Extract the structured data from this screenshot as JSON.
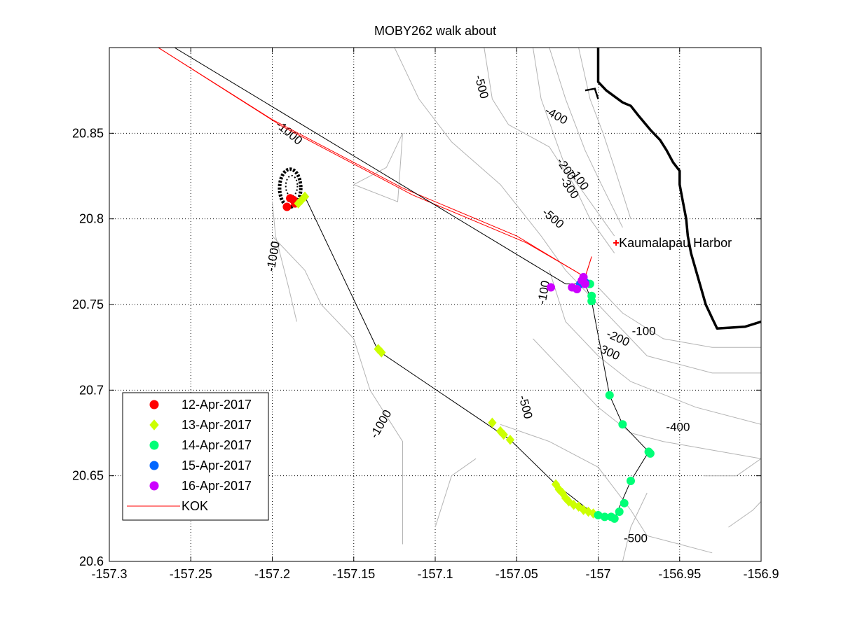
{
  "chart_data": {
    "type": "scatter",
    "title": "MOBY262 walk about",
    "xlabel": "",
    "ylabel": "",
    "xlim": [
      -157.3,
      -156.9
    ],
    "ylim": [
      20.6,
      20.9
    ],
    "xticks": [
      -157.3,
      -157.25,
      -157.2,
      -157.15,
      -157.1,
      -157.05,
      -157.0,
      -156.95,
      -156.9
    ],
    "xtick_labels": [
      "-157.3",
      "-157.25",
      "-157.2",
      "-157.15",
      "-157.1",
      "-157.05",
      "-157",
      "-156.95",
      "-156.9"
    ],
    "yticks": [
      20.6,
      20.65,
      20.7,
      20.75,
      20.8,
      20.85
    ],
    "ytick_labels": [
      "20.6",
      "20.65",
      "20.7",
      "20.75",
      "20.8",
      "20.85"
    ],
    "grid": true,
    "legend_position": "lower-left",
    "colors": {
      "day1": "#ff0000",
      "day2": "#ccff00",
      "day3": "#00ff77",
      "day4": "#0066ff",
      "day5": "#cc00ff",
      "kok": "#ff0000",
      "track": "#000000",
      "contour": "#b4b4b4",
      "coast": "#000000"
    },
    "series": [
      {
        "name": "12-Apr-2017",
        "marker": "circle",
        "color": "#ff0000",
        "points": [
          [
            -157.191,
            20.807
          ],
          [
            -157.189,
            20.812
          ],
          [
            -157.187,
            20.811
          ],
          [
            -157.186,
            20.809
          ]
        ]
      },
      {
        "name": "13-Apr-2017",
        "marker": "diamond",
        "color": "#ccff00",
        "points": [
          [
            -157.184,
            20.809
          ],
          [
            -157.182,
            20.811
          ],
          [
            -157.18,
            20.813
          ],
          [
            -157.135,
            20.724
          ],
          [
            -157.133,
            20.722
          ],
          [
            -157.065,
            20.681
          ],
          [
            -157.06,
            20.676
          ],
          [
            -157.058,
            20.674
          ],
          [
            -157.054,
            20.671
          ],
          [
            -157.026,
            20.645
          ],
          [
            -157.024,
            20.642
          ],
          [
            -157.022,
            20.64
          ],
          [
            -157.02,
            20.637
          ],
          [
            -157.018,
            20.635
          ],
          [
            -157.015,
            20.633
          ],
          [
            -157.012,
            20.632
          ],
          [
            -157.009,
            20.63
          ],
          [
            -157.006,
            20.629
          ],
          [
            -157.003,
            20.628
          ]
        ]
      },
      {
        "name": "14-Apr-2017",
        "marker": "circle",
        "color": "#00ff77",
        "points": [
          [
            -157.005,
            20.762
          ],
          [
            -157.004,
            20.755
          ],
          [
            -157.004,
            20.752
          ],
          [
            -156.993,
            20.697
          ],
          [
            -156.985,
            20.68
          ],
          [
            -156.969,
            20.664
          ],
          [
            -156.968,
            20.663
          ],
          [
            -156.98,
            20.647
          ],
          [
            -156.984,
            20.634
          ],
          [
            -156.987,
            20.629
          ],
          [
            -156.99,
            20.625
          ],
          [
            -156.992,
            20.626
          ],
          [
            -156.996,
            20.626
          ],
          [
            -157.0,
            20.627
          ]
        ]
      },
      {
        "name": "15-Apr-2017",
        "marker": "circle",
        "color": "#0066ff",
        "points": [
          [
            -157.011,
            20.762
          ],
          [
            -157.008,
            20.763
          ]
        ]
      },
      {
        "name": "16-Apr-2017",
        "marker": "circle",
        "color": "#cc00ff",
        "points": [
          [
            -157.029,
            20.76
          ],
          [
            -157.016,
            20.76
          ],
          [
            -157.013,
            20.759
          ],
          [
            -157.01,
            20.764
          ],
          [
            -157.009,
            20.766
          ],
          [
            -157.008,
            20.762
          ]
        ]
      },
      {
        "name": "KOK",
        "marker": "line",
        "color": "#ff0000",
        "points": [
          [
            -157.27,
            20.9
          ],
          [
            -157.2,
            20.858
          ],
          [
            -157.12,
            20.818
          ],
          [
            -157.05,
            20.79
          ],
          [
            -157.015,
            20.77
          ],
          [
            -157.008,
            20.766
          ],
          [
            -157.004,
            20.778
          ]
        ]
      }
    ],
    "track": [
      [
        -157.26,
        20.9
      ],
      [
        -157.02,
        20.762
      ],
      [
        -157.008,
        20.762
      ],
      [
        -157.004,
        20.752
      ],
      [
        -156.993,
        20.697
      ],
      [
        -156.985,
        20.68
      ],
      [
        -156.969,
        20.664
      ],
      [
        -156.98,
        20.647
      ],
      [
        -156.99,
        20.625
      ],
      [
        -157.003,
        20.628
      ],
      [
        -157.026,
        20.645
      ],
      [
        -157.054,
        20.671
      ],
      [
        -157.135,
        20.723
      ],
      [
        -157.18,
        20.813
      ]
    ],
    "contour_labels": [
      {
        "text": "-500",
        "x": -157.072,
        "y": 20.877,
        "angle": 75
      },
      {
        "text": "-400",
        "x": -157.026,
        "y": 20.86,
        "angle": 30
      },
      {
        "text": "-1000",
        "x": -157.19,
        "y": 20.85,
        "angle": 40
      },
      {
        "text": "-200",
        "x": -157.02,
        "y": 20.829,
        "angle": 55
      },
      {
        "text": "-100",
        "x": -157.012,
        "y": 20.823,
        "angle": 55
      },
      {
        "text": "-300",
        "x": -157.018,
        "y": 20.818,
        "angle": 55
      },
      {
        "text": "-500",
        "x": -157.028,
        "y": 20.8,
        "angle": 40
      },
      {
        "text": "-1000",
        "x": -157.199,
        "y": 20.778,
        "angle": -80
      },
      {
        "text": "-100",
        "x": -157.033,
        "y": 20.757,
        "angle": -80
      },
      {
        "text": "-100",
        "x": -156.972,
        "y": 20.734,
        "angle": 0
      },
      {
        "text": "-200",
        "x": -156.988,
        "y": 20.73,
        "angle": 25
      },
      {
        "text": "-300",
        "x": -156.994,
        "y": 20.722,
        "angle": 25
      },
      {
        "text": "-500",
        "x": -157.045,
        "y": 20.69,
        "angle": 75
      },
      {
        "text": "-1000",
        "x": -157.133,
        "y": 20.68,
        "angle": -60
      },
      {
        "text": "-400",
        "x": -156.951,
        "y": 20.678,
        "angle": 0
      },
      {
        "text": "-500",
        "x": -156.977,
        "y": 20.613,
        "angle": 0
      }
    ],
    "annotations": [
      {
        "text": "Kaumalapau Harbor",
        "x": -156.989,
        "y": 20.786
      }
    ],
    "contours": [
      [
        [
          -157.07,
          20.9
        ],
        [
          -157.065,
          20.87
        ],
        [
          -157.055,
          20.855
        ],
        [
          -157.03,
          20.842
        ],
        [
          -157.015,
          20.82
        ],
        [
          -157.005,
          20.8
        ],
        [
          -156.99,
          20.78
        ]
      ],
      [
        [
          -157.04,
          20.9
        ],
        [
          -157.035,
          20.87
        ],
        [
          -157.02,
          20.83
        ],
        [
          -157.005,
          20.81
        ],
        [
          -156.99,
          20.79
        ]
      ],
      [
        [
          -157.03,
          20.9
        ],
        [
          -157.02,
          20.87
        ],
        [
          -157.008,
          20.84
        ],
        [
          -156.998,
          20.82
        ],
        [
          -156.985,
          20.795
        ]
      ],
      [
        [
          -157.012,
          20.9
        ],
        [
          -157.005,
          20.87
        ],
        [
          -156.997,
          20.85
        ],
        [
          -156.99,
          20.83
        ],
        [
          -156.98,
          20.8
        ]
      ],
      [
        [
          -157.125,
          20.9
        ],
        [
          -157.11,
          20.87
        ],
        [
          -157.09,
          20.845
        ],
        [
          -157.06,
          20.82
        ],
        [
          -157.035,
          20.79
        ],
        [
          -157.02,
          20.77
        ],
        [
          -157.0,
          20.75
        ]
      ],
      [
        [
          -157.15,
          20.82
        ],
        [
          -157.13,
          20.83
        ],
        [
          -157.12,
          20.85
        ],
        [
          -157.123,
          20.81
        ],
        [
          -157.15,
          20.82
        ]
      ],
      [
        [
          -157.2,
          20.79
        ],
        [
          -157.18,
          20.77
        ],
        [
          -157.17,
          20.75
        ],
        [
          -157.15,
          20.73
        ],
        [
          -157.14,
          20.7
        ],
        [
          -157.12,
          20.67
        ],
        [
          -157.12,
          20.61
        ]
      ],
      [
        [
          -157.2,
          20.81
        ],
        [
          -157.198,
          20.79
        ],
        [
          -157.19,
          20.76
        ],
        [
          -157.185,
          20.74
        ]
      ],
      [
        [
          -157.1,
          20.62
        ],
        [
          -157.09,
          20.65
        ],
        [
          -157.075,
          20.66
        ]
      ],
      [
        [
          -157.03,
          20.77
        ],
        [
          -157.02,
          20.74
        ],
        [
          -157.0,
          20.72
        ],
        [
          -156.98,
          20.705
        ],
        [
          -156.94,
          20.69
        ],
        [
          -156.9,
          20.68
        ]
      ],
      [
        [
          -157.01,
          20.76
        ],
        [
          -156.99,
          20.74
        ],
        [
          -156.97,
          20.72
        ],
        [
          -156.93,
          20.71
        ],
        [
          -156.9,
          20.71
        ]
      ],
      [
        [
          -157.0,
          20.76
        ],
        [
          -156.985,
          20.745
        ],
        [
          -156.96,
          20.73
        ],
        [
          -156.93,
          20.725
        ],
        [
          -156.9,
          20.725
        ]
      ],
      [
        [
          -157.04,
          20.73
        ],
        [
          -157.02,
          20.71
        ],
        [
          -157.0,
          20.69
        ],
        [
          -156.98,
          20.675
        ],
        [
          -156.96,
          20.67
        ],
        [
          -156.93,
          20.665
        ],
        [
          -156.9,
          20.66
        ]
      ],
      [
        [
          -157.06,
          20.68
        ],
        [
          -157.03,
          20.67
        ],
        [
          -157.0,
          20.655
        ],
        [
          -156.98,
          20.63
        ],
        [
          -156.97,
          20.615
        ],
        [
          -156.95,
          20.61
        ],
        [
          -156.93,
          20.605
        ]
      ],
      [
        [
          -156.935,
          20.65
        ],
        [
          -156.915,
          20.65
        ],
        [
          -156.9,
          20.66
        ]
      ],
      [
        [
          -156.92,
          20.62
        ],
        [
          -156.905,
          20.63
        ],
        [
          -156.9,
          20.635
        ]
      ],
      [
        [
          -156.97,
          20.64
        ],
        [
          -156.98,
          20.62
        ],
        [
          -156.985,
          20.6
        ]
      ]
    ],
    "coastline": [
      [
        -157.0,
        20.9
      ],
      [
        -157.0,
        20.88
      ],
      [
        -156.995,
        20.875
      ],
      [
        -156.985,
        20.868
      ],
      [
        -156.98,
        20.866
      ],
      [
        -156.975,
        20.86
      ],
      [
        -156.968,
        20.852
      ],
      [
        -156.962,
        20.846
      ],
      [
        -156.958,
        20.84
      ],
      [
        -156.954,
        20.833
      ],
      [
        -156.95,
        20.828
      ],
      [
        -156.95,
        20.82
      ],
      [
        -156.948,
        20.81
      ],
      [
        -156.946,
        20.8
      ],
      [
        -156.945,
        20.79
      ],
      [
        -156.943,
        20.78
      ],
      [
        -156.94,
        20.77
      ],
      [
        -156.937,
        20.76
      ],
      [
        -156.934,
        20.75
      ],
      [
        -156.93,
        20.742
      ],
      [
        -156.927,
        20.736
      ],
      [
        -156.91,
        20.737
      ],
      [
        -156.9,
        20.74
      ]
    ],
    "coastline_islet": [
      [
        -157.008,
        20.875
      ],
      [
        -157.002,
        20.876
      ],
      [
        -157.0,
        20.87
      ]
    ],
    "buoy_circle": {
      "cx": -157.189,
      "cy": 20.818,
      "r_lon": 0.0065,
      "r_lat": 0.011
    }
  }
}
